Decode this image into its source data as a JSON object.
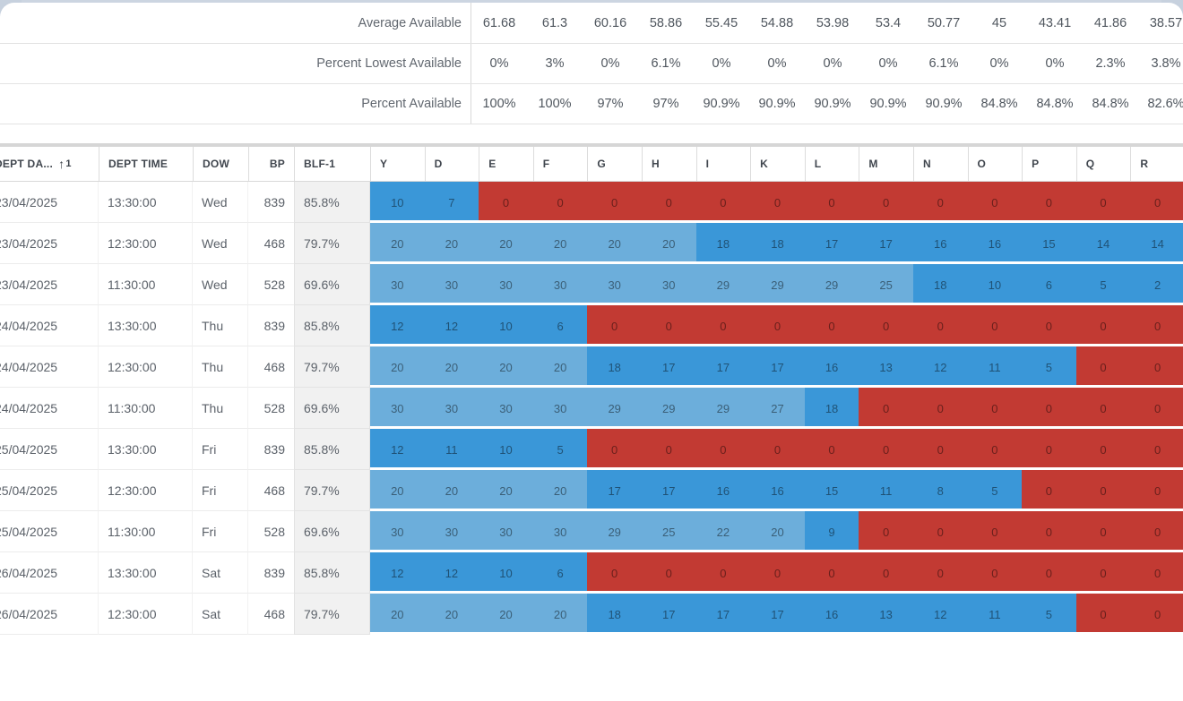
{
  "summary": {
    "rows": [
      {
        "label": "Average Available",
        "values": [
          "61.68",
          "61.3",
          "60.16",
          "58.86",
          "55.45",
          "54.88",
          "53.98",
          "53.4",
          "50.77",
          "45",
          "43.41",
          "41.86",
          "38.57"
        ]
      },
      {
        "label": "Percent Lowest Available",
        "values": [
          "0%",
          "3%",
          "0%",
          "6.1%",
          "0%",
          "0%",
          "0%",
          "0%",
          "6.1%",
          "0%",
          "0%",
          "2.3%",
          "3.8%"
        ]
      },
      {
        "label": "Percent Available",
        "values": [
          "100%",
          "100%",
          "97%",
          "97%",
          "90.9%",
          "90.9%",
          "90.9%",
          "90.9%",
          "90.9%",
          "84.8%",
          "84.8%",
          "84.8%",
          "82.6%"
        ]
      }
    ]
  },
  "table": {
    "columns": [
      {
        "key": "dept_date",
        "label": "DEPT DA...",
        "align": "left",
        "sort": {
          "direction": "asc",
          "order": "1"
        }
      },
      {
        "key": "dept_time",
        "label": "DEPT TIME",
        "align": "left"
      },
      {
        "key": "dow",
        "label": "DOW",
        "align": "left"
      },
      {
        "key": "bp",
        "label": "BP",
        "align": "right"
      },
      {
        "key": "blf",
        "label": "BLF-1",
        "align": "left"
      }
    ],
    "class_columns": [
      "Y",
      "D",
      "E",
      "F",
      "G",
      "H",
      "I",
      "K",
      "L",
      "M",
      "N",
      "O",
      "P",
      "Q",
      "R"
    ],
    "rows": [
      {
        "dept_date": "23/04/2025",
        "dept_time": "13:30:00",
        "dow": "Wed",
        "bp": "839",
        "blf": "85.8%",
        "availability": [
          10,
          7,
          0,
          0,
          0,
          0,
          0,
          0,
          0,
          0,
          0,
          0,
          0,
          0,
          0
        ],
        "shades": [
          "dark",
          "dark",
          "red",
          "red",
          "red",
          "red",
          "red",
          "red",
          "red",
          "red",
          "red",
          "red",
          "red",
          "red",
          "red"
        ]
      },
      {
        "dept_date": "23/04/2025",
        "dept_time": "12:30:00",
        "dow": "Wed",
        "bp": "468",
        "blf": "79.7%",
        "availability": [
          20,
          20,
          20,
          20,
          20,
          20,
          18,
          18,
          17,
          17,
          16,
          16,
          15,
          14,
          14
        ],
        "shades": [
          "light",
          "light",
          "light",
          "light",
          "light",
          "light",
          "dark",
          "dark",
          "dark",
          "dark",
          "dark",
          "dark",
          "dark",
          "dark",
          "dark"
        ]
      },
      {
        "dept_date": "23/04/2025",
        "dept_time": "11:30:00",
        "dow": "Wed",
        "bp": "528",
        "blf": "69.6%",
        "availability": [
          30,
          30,
          30,
          30,
          30,
          30,
          29,
          29,
          29,
          25,
          18,
          10,
          6,
          5,
          2
        ],
        "shades": [
          "light",
          "light",
          "light",
          "light",
          "light",
          "light",
          "light",
          "light",
          "light",
          "light",
          "dark",
          "dark",
          "dark",
          "dark",
          "dark"
        ]
      },
      {
        "dept_date": "24/04/2025",
        "dept_time": "13:30:00",
        "dow": "Thu",
        "bp": "839",
        "blf": "85.8%",
        "availability": [
          12,
          12,
          10,
          6,
          0,
          0,
          0,
          0,
          0,
          0,
          0,
          0,
          0,
          0,
          0
        ],
        "shades": [
          "dark",
          "dark",
          "dark",
          "dark",
          "red",
          "red",
          "red",
          "red",
          "red",
          "red",
          "red",
          "red",
          "red",
          "red",
          "red"
        ]
      },
      {
        "dept_date": "24/04/2025",
        "dept_time": "12:30:00",
        "dow": "Thu",
        "bp": "468",
        "blf": "79.7%",
        "availability": [
          20,
          20,
          20,
          20,
          18,
          17,
          17,
          17,
          16,
          13,
          12,
          11,
          5,
          0,
          0
        ],
        "shades": [
          "light",
          "light",
          "light",
          "light",
          "dark",
          "dark",
          "dark",
          "dark",
          "dark",
          "dark",
          "dark",
          "dark",
          "dark",
          "red",
          "red"
        ]
      },
      {
        "dept_date": "24/04/2025",
        "dept_time": "11:30:00",
        "dow": "Thu",
        "bp": "528",
        "blf": "69.6%",
        "availability": [
          30,
          30,
          30,
          30,
          29,
          29,
          29,
          27,
          18,
          0,
          0,
          0,
          0,
          0,
          0
        ],
        "shades": [
          "light",
          "light",
          "light",
          "light",
          "light",
          "light",
          "light",
          "light",
          "dark",
          "red",
          "red",
          "red",
          "red",
          "red",
          "red"
        ]
      },
      {
        "dept_date": "25/04/2025",
        "dept_time": "13:30:00",
        "dow": "Fri",
        "bp": "839",
        "blf": "85.8%",
        "availability": [
          12,
          11,
          10,
          5,
          0,
          0,
          0,
          0,
          0,
          0,
          0,
          0,
          0,
          0,
          0
        ],
        "shades": [
          "dark",
          "dark",
          "dark",
          "dark",
          "red",
          "red",
          "red",
          "red",
          "red",
          "red",
          "red",
          "red",
          "red",
          "red",
          "red"
        ]
      },
      {
        "dept_date": "25/04/2025",
        "dept_time": "12:30:00",
        "dow": "Fri",
        "bp": "468",
        "blf": "79.7%",
        "availability": [
          20,
          20,
          20,
          20,
          17,
          17,
          16,
          16,
          15,
          11,
          8,
          5,
          0,
          0,
          0
        ],
        "shades": [
          "light",
          "light",
          "light",
          "light",
          "dark",
          "dark",
          "dark",
          "dark",
          "dark",
          "dark",
          "dark",
          "dark",
          "red",
          "red",
          "red"
        ]
      },
      {
        "dept_date": "25/04/2025",
        "dept_time": "11:30:00",
        "dow": "Fri",
        "bp": "528",
        "blf": "69.6%",
        "availability": [
          30,
          30,
          30,
          30,
          29,
          25,
          22,
          20,
          9,
          0,
          0,
          0,
          0,
          0,
          0
        ],
        "shades": [
          "light",
          "light",
          "light",
          "light",
          "light",
          "light",
          "light",
          "light",
          "dark",
          "red",
          "red",
          "red",
          "red",
          "red",
          "red"
        ]
      },
      {
        "dept_date": "26/04/2025",
        "dept_time": "13:30:00",
        "dow": "Sat",
        "bp": "839",
        "blf": "85.8%",
        "availability": [
          12,
          12,
          10,
          6,
          0,
          0,
          0,
          0,
          0,
          0,
          0,
          0,
          0,
          0,
          0
        ],
        "shades": [
          "dark",
          "dark",
          "dark",
          "dark",
          "red",
          "red",
          "red",
          "red",
          "red",
          "red",
          "red",
          "red",
          "red",
          "red",
          "red"
        ]
      },
      {
        "dept_date": "26/04/2025",
        "dept_time": "12:30:00",
        "dow": "Sat",
        "bp": "468",
        "blf": "79.7%",
        "availability": [
          20,
          20,
          20,
          20,
          18,
          17,
          17,
          17,
          16,
          13,
          12,
          11,
          5,
          0,
          0
        ],
        "shades": [
          "light",
          "light",
          "light",
          "light",
          "dark",
          "dark",
          "dark",
          "dark",
          "dark",
          "dark",
          "dark",
          "dark",
          "dark",
          "red",
          "red"
        ]
      }
    ]
  },
  "colors": {
    "availability_light_blue": "#6caedb",
    "availability_dark_blue": "#3a97d8",
    "availability_red": "#c23a33",
    "blf_cell_background": "#f1f1f1",
    "scroll_strip": "#d6d6d6"
  }
}
